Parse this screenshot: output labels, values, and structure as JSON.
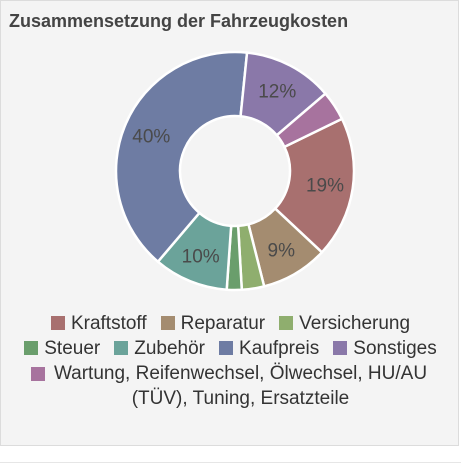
{
  "chart_data": {
    "type": "pie",
    "variant": "donut",
    "title": "Zusammensetzung der Fahrzeugkosten",
    "slices": [
      {
        "label": "Kraftstoff",
        "value": 19,
        "color": "#a8706f",
        "data_label": "19%"
      },
      {
        "label": "Reparatur",
        "value": 9,
        "color": "#a48c70",
        "data_label": "9%"
      },
      {
        "label": "Versicherung",
        "value": 3,
        "color": "#8fae6e",
        "data_label": ""
      },
      {
        "label": "Steuer",
        "value": 2,
        "color": "#6a9e6c",
        "data_label": ""
      },
      {
        "label": "Zubehör",
        "value": 10,
        "color": "#6ba39a",
        "data_label": "10%"
      },
      {
        "label": "Kaufpreis",
        "value": 40,
        "color": "#6e7ca3",
        "data_label": "40%"
      },
      {
        "label": "Sonstiges",
        "value": 12,
        "color": "#8a78a9",
        "data_label": "12%"
      },
      {
        "label": "Wartung, Reifenwechsel, Ölwechsel, HU/AU (TÜV), Tuning, Ersatzteile",
        "value": 4,
        "color": "#a7739e",
        "data_label": ""
      }
    ],
    "legend_position": "bottom"
  }
}
